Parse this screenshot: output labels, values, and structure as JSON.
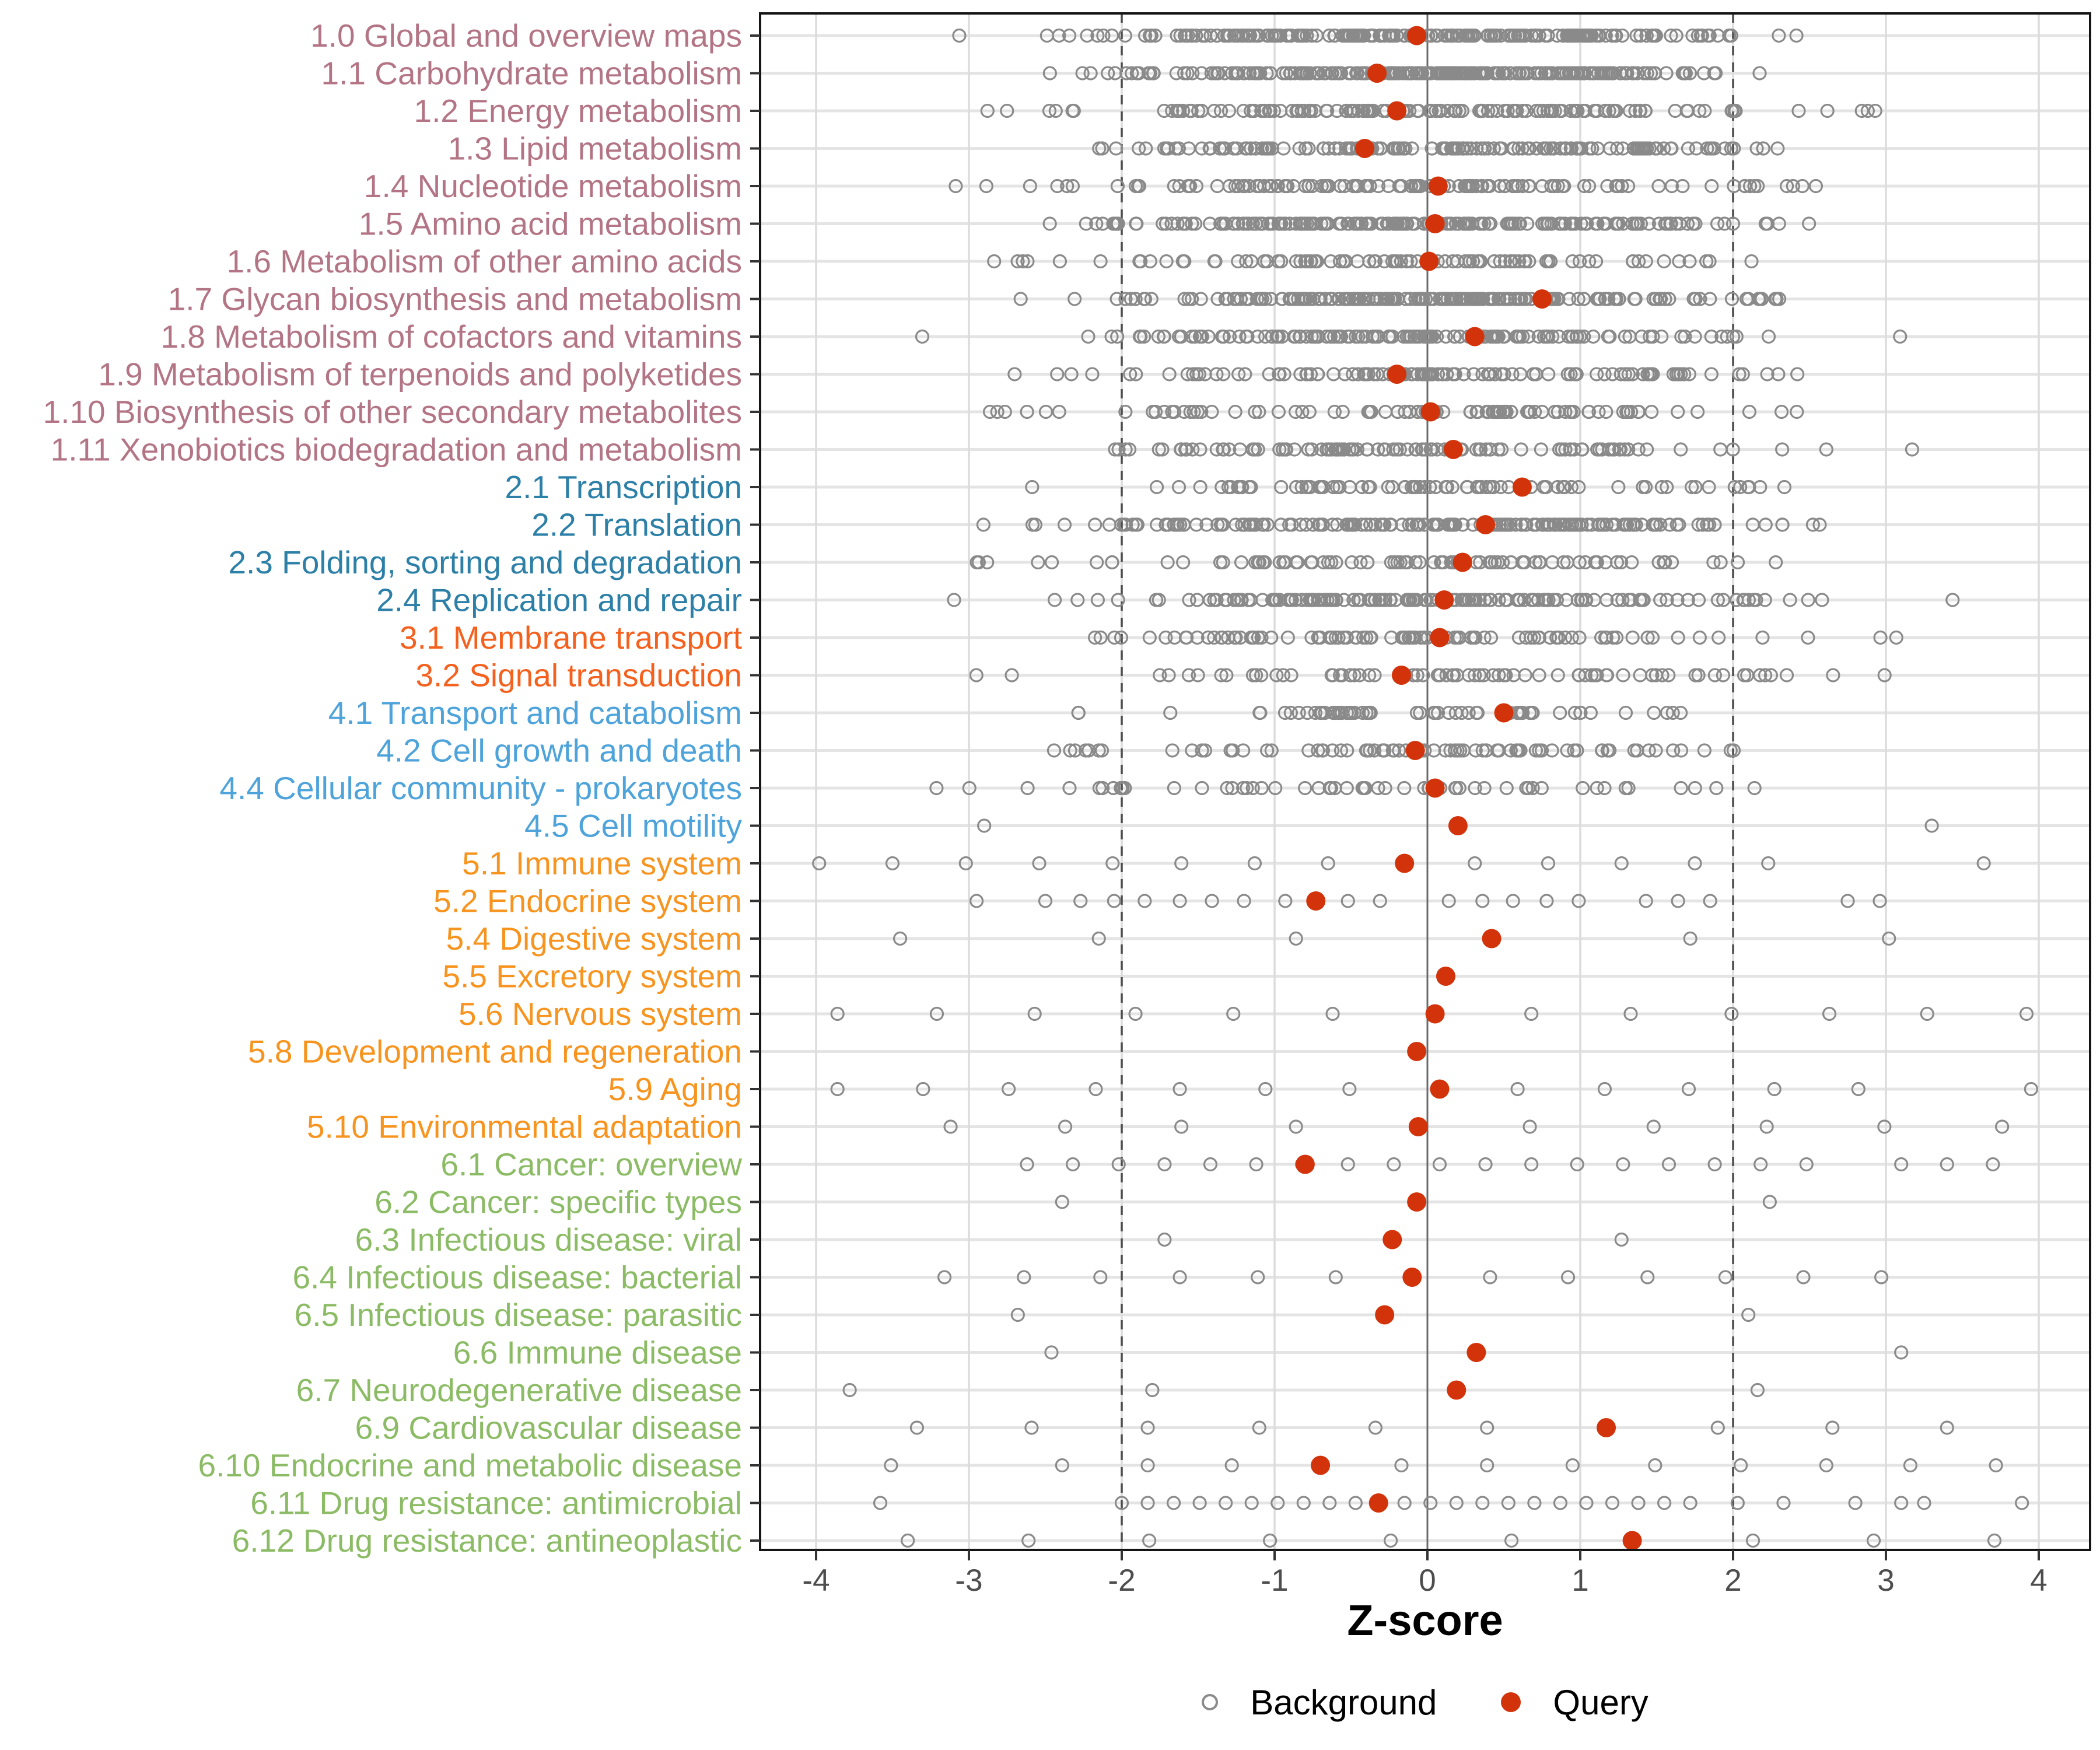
{
  "chart_data": {
    "type": "scatter",
    "title": "",
    "xlabel": "Z-score",
    "ylabel": "",
    "xlim": [
      -4.37,
      4.34
    ],
    "x_ticks": [
      -4,
      -3,
      -2,
      -1,
      0,
      1,
      2,
      3,
      4
    ],
    "reference_lines": {
      "solid": [
        0
      ],
      "dashed": [
        -2,
        2
      ]
    },
    "grid": "on",
    "legend_position": "bottom",
    "legend": [
      {
        "label": "Background",
        "marker": "open-circle",
        "color": "#8a8a8a"
      },
      {
        "label": "Query",
        "marker": "filled-circle",
        "color": "#d2330a"
      }
    ],
    "group_colors": {
      "1": "#b37585",
      "2": "#2c7fa6",
      "3": "#f4611e",
      "4": "#4da3da",
      "5": "#f7941f",
      "6": "#8cbb65"
    },
    "style": {
      "background_point_color": "#8a8a8a",
      "query_point_color": "#d2330a",
      "grid_h_color": "#e4e4e4",
      "grid_v_color": "#dcdcdc",
      "zero_line_color": "#6a6a6a",
      "dashed_line_color": "#4d4d4d",
      "panel_border_color": "#141414",
      "tick_color": "#333333",
      "tick_label_color": "#4d4d4d"
    },
    "rows": [
      {
        "label": "1.0 Global and overview maps",
        "group": "1",
        "query": -0.07,
        "bg_gen": {
          "n": 230,
          "sd": 1.05,
          "min": -3.55,
          "max": 3.0,
          "seed": 101
        }
      },
      {
        "label": "1.1 Carbohydrate metabolism",
        "group": "1",
        "query": -0.33,
        "bg_gen": {
          "n": 250,
          "sd": 1.0,
          "min": -3.6,
          "max": 2.3,
          "seed": 102
        }
      },
      {
        "label": "1.2 Energy metabolism",
        "group": "1",
        "query": -0.2,
        "bg_gen": {
          "n": 140,
          "sd": 1.35,
          "min": -4.3,
          "max": 3.1,
          "seed": 103
        }
      },
      {
        "label": "1.3 Lipid metabolism",
        "group": "1",
        "query": -0.41,
        "bg_gen": {
          "n": 160,
          "sd": 1.1,
          "min": -3.35,
          "max": 2.6,
          "seed": 104
        }
      },
      {
        "label": "1.4 Nucleotide metabolism",
        "group": "1",
        "query": 0.07,
        "bg_gen": {
          "n": 120,
          "sd": 1.25,
          "min": -3.7,
          "max": 3.1,
          "seed": 105
        }
      },
      {
        "label": "1.5 Amino acid metabolism",
        "group": "1",
        "query": 0.05,
        "bg_gen": {
          "n": 190,
          "sd": 1.1,
          "min": -3.1,
          "max": 2.75,
          "seed": 106
        }
      },
      {
        "label": "1.6 Metabolism of other amino acids",
        "group": "1",
        "query": 0.01,
        "bg_gen": {
          "n": 90,
          "sd": 1.15,
          "min": -3.2,
          "max": 2.8,
          "seed": 107
        }
      },
      {
        "label": "1.7 Glycan biosynthesis and metabolism",
        "group": "1",
        "query": 0.75,
        "bg_gen": {
          "n": 200,
          "sd": 0.95,
          "min": -2.85,
          "max": 2.4,
          "seed": 108
        }
      },
      {
        "label": "1.8 Metabolism of cofactors and vitamins",
        "group": "1",
        "query": 0.31,
        "bg_gen": {
          "n": 140,
          "sd": 1.15,
          "min": -3.5,
          "max": 3.1,
          "seed": 109
        }
      },
      {
        "label": "1.9 Metabolism of terpenoids and polyketides",
        "group": "1",
        "query": -0.2,
        "bg_gen": {
          "n": 105,
          "sd": 1.25,
          "min": -3.3,
          "max": 3.0,
          "seed": 110
        }
      },
      {
        "label": "1.10 Biosynthesis of other secondary metabolites",
        "group": "1",
        "query": 0.02,
        "bg_gen": {
          "n": 95,
          "sd": 1.3,
          "min": -3.7,
          "max": 2.7,
          "seed": 111
        }
      },
      {
        "label": "1.11 Xenobiotics biodegradation and metabolism",
        "group": "1",
        "query": 0.17,
        "bg_gen": {
          "n": 105,
          "sd": 1.3,
          "min": -3.2,
          "max": 3.3,
          "seed": 112
        }
      },
      {
        "label": "2.1 Transcription",
        "group": "2",
        "query": 0.62,
        "bg_gen": {
          "n": 85,
          "sd": 1.15,
          "min": -3.0,
          "max": 2.6,
          "seed": 113
        }
      },
      {
        "label": "2.2 Translation",
        "group": "2",
        "query": 0.38,
        "bg_gen": {
          "n": 165,
          "sd": 1.25,
          "min": -3.3,
          "max": 2.7,
          "seed": 114
        }
      },
      {
        "label": "2.3 Folding, sorting and degradation",
        "group": "2",
        "query": 0.23,
        "bg_gen": {
          "n": 88,
          "sd": 1.2,
          "min": -3.8,
          "max": 2.9,
          "seed": 115
        }
      },
      {
        "label": "2.4 Replication and repair",
        "group": "2",
        "query": 0.11,
        "bg_gen": {
          "n": 150,
          "sd": 1.15,
          "min": -3.6,
          "max": 3.5,
          "seed": 116
        }
      },
      {
        "label": "3.1 Membrane transport",
        "group": "3",
        "query": 0.08,
        "bg_gen": {
          "n": 95,
          "sd": 1.35,
          "min": -3.9,
          "max": 3.2,
          "seed": 117
        }
      },
      {
        "label": "3.2 Signal transduction",
        "group": "3",
        "query": -0.17,
        "bg_gen": {
          "n": 72,
          "sd": 1.3,
          "min": -3.2,
          "max": 3.3,
          "seed": 118
        }
      },
      {
        "label": "4.1 Transport and catabolism",
        "group": "4",
        "query": 0.5,
        "bg_gen": {
          "n": 60,
          "sd": 1.05,
          "min": -2.8,
          "max": 2.3,
          "seed": 119
        }
      },
      {
        "label": "4.2 Cell growth and death",
        "group": "4",
        "query": -0.08,
        "bg_gen": {
          "n": 80,
          "sd": 1.15,
          "min": -2.9,
          "max": 3.8,
          "seed": 120
        }
      },
      {
        "label": "4.4 Cellular community - prokaryotes",
        "group": "4",
        "query": 0.05,
        "bg_gen": {
          "n": 55,
          "sd": 1.45,
          "min": -3.8,
          "max": 2.3,
          "seed": 121
        }
      },
      {
        "label": "4.5 Cell motility",
        "group": "4",
        "query": 0.2,
        "bg": [
          -2.9,
          3.3
        ]
      },
      {
        "label": "5.1 Immune system",
        "group": "5",
        "query": -0.15,
        "bg": [
          -3.98,
          -3.5,
          -3.02,
          -2.54,
          -2.06,
          -1.61,
          -1.13,
          -0.65,
          0.31,
          0.79,
          1.27,
          1.75,
          2.23,
          3.64
        ]
      },
      {
        "label": "5.2 Endocrine system",
        "group": "5",
        "query": -0.73,
        "bg": [
          -2.95,
          -2.5,
          -2.27,
          -2.05,
          -1.85,
          -1.62,
          -1.41,
          -1.2,
          -0.93,
          -0.52,
          -0.31,
          0.14,
          0.36,
          0.56,
          0.78,
          0.99,
          1.43,
          1.64,
          1.85,
          2.75,
          2.96
        ]
      },
      {
        "label": "5.4 Digestive system",
        "group": "5",
        "query": 0.42,
        "bg": [
          -3.45,
          -2.15,
          -0.86,
          1.72,
          3.02
        ]
      },
      {
        "label": "5.5 Excretory system",
        "group": "5",
        "query": 0.12,
        "bg": []
      },
      {
        "label": "5.6 Nervous system",
        "group": "5",
        "query": 0.05,
        "bg": [
          -3.86,
          -3.21,
          -2.57,
          -1.91,
          -1.27,
          -0.62,
          0.68,
          1.33,
          1.99,
          2.63,
          3.27,
          3.92
        ]
      },
      {
        "label": "5.8 Development and regeneration",
        "group": "5",
        "query": -0.07,
        "bg": []
      },
      {
        "label": "5.9 Aging",
        "group": "5",
        "query": 0.08,
        "bg": [
          -3.86,
          -3.3,
          -2.74,
          -2.17,
          -1.62,
          -1.06,
          -0.51,
          0.59,
          1.16,
          1.71,
          2.27,
          2.82,
          3.95
        ]
      },
      {
        "label": "5.10 Environmental adaptation",
        "group": "5",
        "query": -0.06,
        "bg": [
          -3.12,
          -2.37,
          -1.61,
          -0.86,
          0.67,
          1.48,
          2.22,
          2.99,
          3.76
        ]
      },
      {
        "label": "6.1 Cancer: overview",
        "group": "6",
        "query": -0.8,
        "bg": [
          -2.62,
          -2.32,
          -2.02,
          -1.72,
          -1.42,
          -1.12,
          -0.82,
          -0.52,
          -0.22,
          0.08,
          0.38,
          0.68,
          0.98,
          1.28,
          1.58,
          1.88,
          2.18,
          2.48,
          3.1,
          3.4,
          3.7
        ]
      },
      {
        "label": "6.2 Cancer: specific types",
        "group": "6",
        "query": -0.07,
        "bg": [
          -2.39,
          2.24
        ]
      },
      {
        "label": "6.3 Infectious disease: viral",
        "group": "6",
        "query": -0.23,
        "bg": [
          -1.72,
          1.27
        ]
      },
      {
        "label": "6.4 Infectious disease: bacterial",
        "group": "6",
        "query": -0.1,
        "bg": [
          -3.16,
          -2.64,
          -2.14,
          -1.62,
          -1.11,
          -0.6,
          0.41,
          0.92,
          1.44,
          1.95,
          2.46,
          2.97
        ]
      },
      {
        "label": "6.5 Infectious disease: parasitic",
        "group": "6",
        "query": -0.28,
        "bg": [
          -2.68,
          2.1
        ]
      },
      {
        "label": "6.6 Immune disease",
        "group": "6",
        "query": 0.32,
        "bg": [
          -2.46,
          3.1
        ]
      },
      {
        "label": "6.7 Neurodegenerative disease",
        "group": "6",
        "query": 0.19,
        "bg": [
          -3.78,
          -1.8,
          2.16
        ]
      },
      {
        "label": "6.9 Cardiovascular disease",
        "group": "6",
        "query": 1.17,
        "bg": [
          -3.34,
          -2.59,
          -1.83,
          -1.1,
          -0.34,
          0.39,
          1.9,
          2.65,
          3.4
        ]
      },
      {
        "label": "6.10 Endocrine and metabolic disease",
        "group": "6",
        "query": -0.7,
        "bg": [
          -3.51,
          -2.39,
          -1.83,
          -1.28,
          -0.17,
          0.39,
          0.95,
          1.49,
          2.05,
          2.61,
          3.16,
          3.72
        ]
      },
      {
        "label": "6.11 Drug resistance: antimicrobial",
        "group": "6",
        "query": -0.32,
        "bg": [
          -3.58,
          -2.0,
          -1.83,
          -1.66,
          -1.49,
          -1.32,
          -1.15,
          -0.98,
          -0.81,
          -0.64,
          -0.47,
          -0.15,
          0.02,
          0.19,
          0.36,
          0.53,
          0.7,
          0.87,
          1.04,
          1.21,
          1.38,
          1.55,
          1.72,
          2.03,
          2.33,
          2.8,
          3.1,
          3.25,
          3.89
        ]
      },
      {
        "label": "6.12 Drug resistance: antineoplastic",
        "group": "6",
        "query": 1.34,
        "bg": [
          -3.4,
          -2.61,
          -1.82,
          -1.03,
          -0.24,
          0.55,
          2.13,
          2.92,
          3.71
        ]
      }
    ]
  }
}
